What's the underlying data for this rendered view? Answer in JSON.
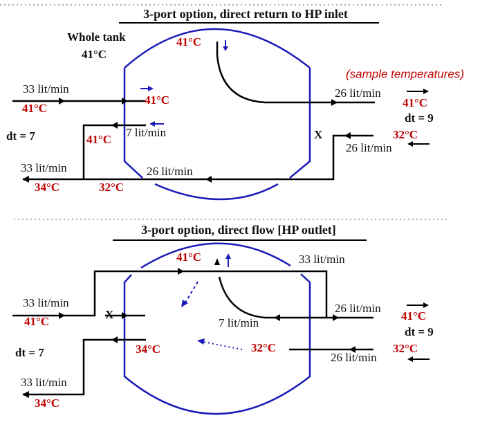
{
  "top": {
    "title": "3-port option, direct return to HP inlet",
    "whole_tank": "Whole tank",
    "whole_tank_temp": "41°C",
    "top_temp": "41°C",
    "sample_note": "(sample temperatures)",
    "inlet_flow": "33 lit/min",
    "inlet_temp": "41°C",
    "inner_inlet_temp": "41°C",
    "out_flow": "26 lit/min",
    "out_temp": "41°C",
    "dt_right": "dt = 9",
    "x_mark": "X",
    "return_temp": "32°C",
    "return_flow": "26 lit/min",
    "dt_left": "dt = 7",
    "bypass_flow": "7 lit/min",
    "bypass_temp": "41°C",
    "outlet_flow": "33 lit/min",
    "outlet_temp": "34°C",
    "bottom_temp": "32°C",
    "bottom_flow": "26 lit/min"
  },
  "bottom": {
    "title": "3-port option, direct flow [HP outlet]",
    "top_temp": "41°C",
    "top_flow": "33 lit/min",
    "inlet_flow": "33 lit/min",
    "inlet_temp": "41°C",
    "x_mark": "X",
    "out_flow": "26 lit/min",
    "out_temp": "41°C",
    "dt_right": "dt = 9",
    "inner_flow": "7 lit/min",
    "inner_cold_temp": "32°C",
    "return_temp": "32°C",
    "return_flow": "26 lit/min",
    "dt_left": "dt = 7",
    "mid_temp": "34°C",
    "outlet_flow": "33 lit/min",
    "outlet_temp": "34°C"
  },
  "colors": {
    "temperature": "#c00000",
    "tank": "#1a1ab8",
    "pipe": "#000000"
  }
}
